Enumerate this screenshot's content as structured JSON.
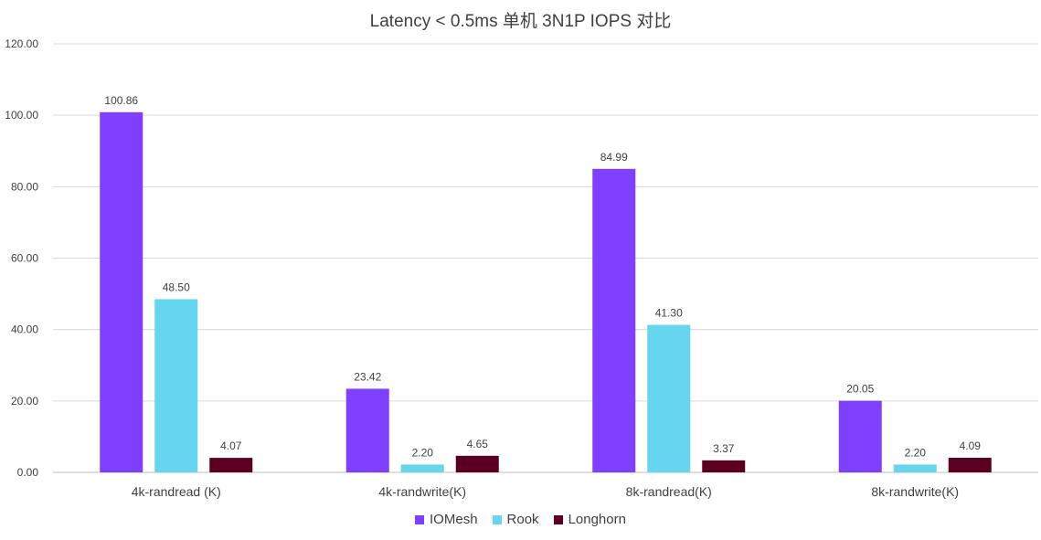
{
  "chart_data": {
    "type": "bar",
    "title": "Latency < 0.5ms 单机 3N1P IOPS 对比",
    "xlabel": "",
    "ylabel": "",
    "ylim": [
      0,
      120
    ],
    "yticks": [
      "0.00",
      "20.00",
      "40.00",
      "60.00",
      "80.00",
      "100.00",
      "120.00"
    ],
    "categories": [
      "4k-randread (K)",
      "4k-randwrite(K)",
      "8k-randread(K)",
      "8k-randwrite(K)"
    ],
    "series": [
      {
        "name": "IOMesh",
        "color": "#7f3fff",
        "values": [
          100.86,
          23.42,
          84.99,
          20.05
        ],
        "labels": [
          "100.86",
          "23.42",
          "84.99",
          "20.05"
        ]
      },
      {
        "name": "Rook",
        "color": "#66d6f0",
        "values": [
          48.5,
          2.2,
          41.3,
          2.2
        ],
        "labels": [
          "48.50",
          "2.20",
          "41.30",
          "2.20"
        ]
      },
      {
        "name": "Longhorn",
        "color": "#5c0022",
        "values": [
          4.07,
          4.65,
          3.37,
          4.09
        ],
        "labels": [
          "4.07",
          "4.65",
          "3.37",
          "4.09"
        ]
      }
    ],
    "grid": true,
    "legend_position": "bottom"
  }
}
